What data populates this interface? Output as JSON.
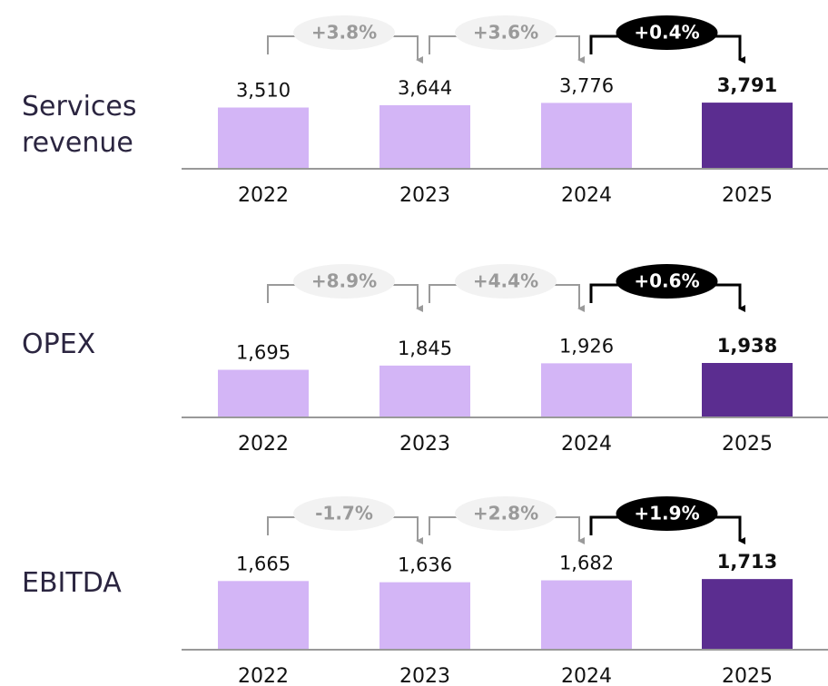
{
  "chart_data": [
    {
      "type": "bar",
      "title": "Services revenue",
      "categories": [
        "2022",
        "2023",
        "2024",
        "2025"
      ],
      "values": [
        3510,
        3644,
        3776,
        3791
      ],
      "value_labels": [
        "3,510",
        "3,644",
        "3,776",
        "3,791"
      ],
      "annotations": [
        "+3.8%",
        "+3.6%",
        "+0.4%"
      ],
      "colors": [
        "#d3b5f6",
        "#d3b5f6",
        "#d3b5f6",
        "#5b2d90"
      ],
      "ylim": [
        0,
        5200
      ]
    },
    {
      "type": "bar",
      "title": "OPEX",
      "categories": [
        "2022",
        "2023",
        "2024",
        "2025"
      ],
      "values": [
        1695,
        1845,
        1926,
        1938
      ],
      "value_labels": [
        "1,695",
        "1,845",
        "1,926",
        "1,938"
      ],
      "annotations": [
        "+8.9%",
        "+4.4%",
        "+0.6%"
      ],
      "colors": [
        "#d3b5f6",
        "#d3b5f6",
        "#d3b5f6",
        "#5b2d90"
      ],
      "ylim": [
        0,
        3230
      ]
    },
    {
      "type": "bar",
      "title": "EBITDA",
      "categories": [
        "2022",
        "2023",
        "2024",
        "2025"
      ],
      "values": [
        1665,
        1636,
        1682,
        1713
      ],
      "value_labels": [
        "1,665",
        "1,636",
        "1,682",
        "1,713"
      ],
      "annotations": [
        "-1.7%",
        "+2.8%",
        "+1.9%"
      ],
      "colors": [
        "#d3b5f6",
        "#d3b5f6",
        "#d3b5f6",
        "#5b2d90"
      ],
      "ylim": [
        0,
        2200
      ]
    }
  ]
}
